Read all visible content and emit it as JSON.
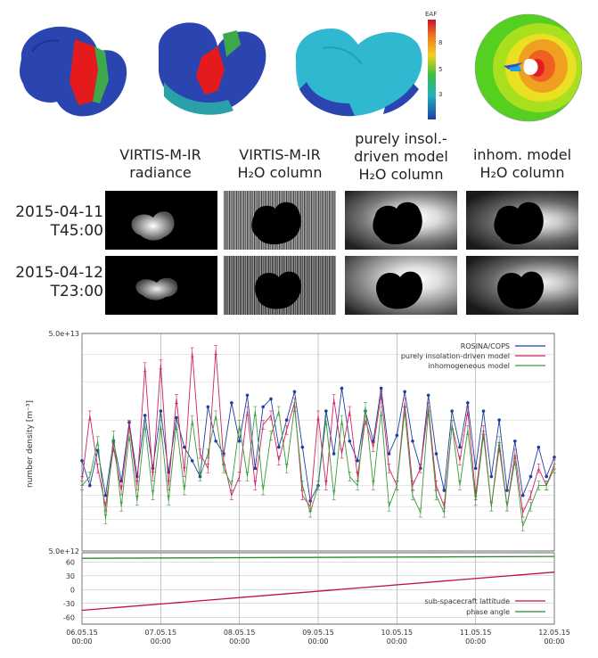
{
  "top_row": {
    "colorbar_label": "EAF",
    "colorbar_ticks": [
      "8",
      "5",
      "3"
    ],
    "colorbar_colors": [
      "#c8102e",
      "#f08020",
      "#f0d020",
      "#3fbf3f",
      "#20b0c0",
      "#2040a0"
    ]
  },
  "grid": {
    "columns": [
      {
        "line1": "VIRTIS-M-IR",
        "line2": "radiance"
      },
      {
        "line1": "VIRTIS-M-IR",
        "line2": "H₂O column"
      },
      {
        "line1": "purely insol.-",
        "line2": "driven model",
        "line3": "H₂O column"
      },
      {
        "line1": "inhom. model",
        "line2": "H₂O column"
      }
    ],
    "rows": [
      {
        "line1": "2015-04-11",
        "line2": "T45:00"
      },
      {
        "line1": "2015-04-12",
        "line2": "T23:00"
      }
    ]
  },
  "chart_data": [
    {
      "type": "line",
      "ylabel": "number density [m⁻³]",
      "y_scale": "log",
      "ylim": [
        5000000000000.0,
        50000000000000.0
      ],
      "y_tick_labels": [
        "5.0e+12",
        "5.0e+13"
      ],
      "x_tick_labels": [
        "06.05.15\n00:00",
        "07.05.15\n00:00",
        "08.05.15\n00:00",
        "09.05.15\n00:00",
        "10.05.15\n00:00",
        "11.05.15\n00:00",
        "12.05.15\n00:00"
      ],
      "x": [
        0.0,
        0.1,
        0.2,
        0.3,
        0.4,
        0.5,
        0.6,
        0.7,
        0.8,
        0.9,
        1.0,
        1.1,
        1.2,
        1.3,
        1.4,
        1.5,
        1.6,
        1.7,
        1.8,
        1.9,
        2.0,
        2.1,
        2.2,
        2.3,
        2.4,
        2.5,
        2.6,
        2.7,
        2.8,
        2.9,
        3.0,
        3.1,
        3.2,
        3.3,
        3.4,
        3.5,
        3.6,
        3.7,
        3.8,
        3.9,
        4.0,
        4.1,
        4.2,
        4.3,
        4.4,
        4.5,
        4.6,
        4.7,
        4.8,
        4.9,
        5.0,
        5.1,
        5.2,
        5.3,
        5.4,
        5.5,
        5.6,
        5.7,
        5.8,
        5.9,
        6.0
      ],
      "grid": true,
      "legend_position": "top-right",
      "series": [
        {
          "name": "ROSINA/COPS",
          "color": "#1f3fa0",
          "values": [
            13000000000000.0,
            10000000000000.0,
            14500000000000.0,
            9000000000000.0,
            16000000000000.0,
            10500000000000.0,
            19500000000000.0,
            11000000000000.0,
            21000000000000.0,
            12000000000000.0,
            22000000000000.0,
            11500000000000.0,
            20500000000000.0,
            15000000000000.0,
            13000000000000.0,
            11000000000000.0,
            23000000000000.0,
            16000000000000.0,
            14000000000000.0,
            24000000000000.0,
            16000000000000.0,
            26000000000000.0,
            12000000000000.0,
            23000000000000.0,
            25000000000000.0,
            15000000000000.0,
            20000000000000.0,
            27000000000000.0,
            15000000000000.0,
            8500000000000.0,
            10000000000000.0,
            22000000000000.0,
            14000000000000.0,
            28000000000000.0,
            16000000000000.0,
            13000000000000.0,
            22000000000000.0,
            16000000000000.0,
            28000000000000.0,
            14000000000000.0,
            17000000000000.0,
            27000000000000.0,
            16000000000000.0,
            12000000000000.0,
            26000000000000.0,
            14000000000000.0,
            9500000000000.0,
            22000000000000.0,
            15000000000000.0,
            24000000000000.0,
            12000000000000.0,
            22000000000000.0,
            11000000000000.0,
            20000000000000.0,
            9500000000000.0,
            16000000000000.0,
            9000000000000.0,
            11000000000000.0,
            15000000000000.0,
            11000000000000.0,
            13500000000000.0
          ]
        },
        {
          "name": "purely insolation-driven model",
          "color": "#d02060",
          "values": [
            10500000000000.0,
            21000000000000.0,
            12000000000000.0,
            8000000000000.0,
            15000000000000.0,
            9500000000000.0,
            19000000000000.0,
            10000000000000.0,
            35000000000000.0,
            11000000000000.0,
            36000000000000.0,
            10000000000000.0,
            25000000000000.0,
            11500000000000.0,
            41000000000000.0,
            14000000000000.0,
            12000000000000.0,
            42000000000000.0,
            13000000000000.0,
            9000000000000.0,
            11000000000000.0,
            22000000000000.0,
            10000000000000.0,
            19000000000000.0,
            21000000000000.0,
            13000000000000.0,
            18000000000000.0,
            24000000000000.0,
            9000000000000.0,
            8000000000000.0,
            21000000000000.0,
            10000000000000.0,
            25000000000000.0,
            14000000000000.0,
            22000000000000.0,
            11000000000000.0,
            20000000000000.0,
            15000000000000.0,
            26000000000000.0,
            12000000000000.0,
            10000000000000.0,
            24000000000000.0,
            10000000000000.0,
            12000000000000.0,
            23000000000000.0,
            10000000000000.0,
            8000000000000.0,
            19000000000000.0,
            13000000000000.0,
            22000000000000.0,
            9000000000000.0,
            18000000000000.0,
            8000000000000.0,
            15000000000000.0,
            8000000000000.0,
            14000000000000.0,
            7500000000000.0,
            9000000000000.0,
            12000000000000.0,
            10000000000000.0,
            12500000000000.0
          ]
        },
        {
          "name": "inhomogeneous model",
          "color": "#3a9a3a",
          "values": [
            10000000000000.0,
            11000000000000.0,
            16000000000000.0,
            7000000000000.0,
            17000000000000.0,
            8000000000000.0,
            17000000000000.0,
            8500000000000.0,
            19000000000000.0,
            9000000000000.0,
            19000000000000.0,
            8500000000000.0,
            19000000000000.0,
            9500000000000.0,
            20000000000000.0,
            11000000000000.0,
            14000000000000.0,
            21000000000000.0,
            12000000000000.0,
            10000000000000.0,
            19000000000000.0,
            11000000000000.0,
            22000000000000.0,
            9500000000000.0,
            17000000000000.0,
            22000000000000.0,
            12000000000000.0,
            23000000000000.0,
            10000000000000.0,
            7500000000000.0,
            10000000000000.0,
            20000000000000.0,
            9000000000000.0,
            20000000000000.0,
            11000000000000.0,
            10000000000000.0,
            23000000000000.0,
            10000000000000.0,
            22000000000000.0,
            8000000000000.0,
            10000000000000.0,
            22000000000000.0,
            9000000000000.0,
            7500000000000.0,
            22000000000000.0,
            9000000000000.0,
            7500000000000.0,
            19000000000000.0,
            10000000000000.0,
            18000000000000.0,
            8500000000000.0,
            17000000000000.0,
            8000000000000.0,
            16000000000000.0,
            8000000000000.0,
            13000000000000.0,
            6500000000000.0,
            8000000000000.0,
            10000000000000.0,
            10000000000000.0,
            12000000000000.0
          ]
        }
      ]
    },
    {
      "type": "line",
      "ylim": [
        -75,
        80
      ],
      "y_ticks": [
        60,
        30,
        0,
        -30,
        -60
      ],
      "x": [
        0,
        6
      ],
      "legend_position": "bottom-right",
      "series": [
        {
          "name": "sub-spacecraft lattitude",
          "color": "#c0104a",
          "values": [
            -45,
            38
          ]
        },
        {
          "name": "phase angle",
          "color": "#2a8a2a",
          "values": [
            68,
            72
          ]
        }
      ]
    }
  ]
}
